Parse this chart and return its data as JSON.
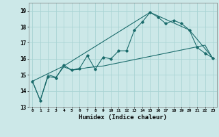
{
  "background_color": "#cce8e8",
  "grid_color": "#aad4d4",
  "line_color": "#1a6b6b",
  "xlabel": "Humidex (Indice chaleur)",
  "xlim": [
    -0.5,
    23.5
  ],
  "ylim": [
    13,
    19.5
  ],
  "yticks": [
    13,
    14,
    15,
    16,
    17,
    18,
    19
  ],
  "xticks": [
    0,
    1,
    2,
    3,
    4,
    5,
    6,
    7,
    8,
    9,
    10,
    11,
    12,
    13,
    14,
    15,
    16,
    17,
    18,
    19,
    20,
    21,
    22,
    23
  ],
  "line1_x": [
    0,
    1,
    2,
    3,
    4,
    5,
    6,
    7,
    8,
    9,
    10,
    11,
    12,
    13,
    14,
    15,
    16,
    17,
    18,
    19,
    20,
    21,
    22,
    23
  ],
  "line1_y": [
    14.6,
    13.4,
    14.9,
    14.8,
    15.6,
    15.3,
    15.4,
    16.2,
    15.35,
    16.1,
    16.0,
    16.5,
    16.5,
    17.8,
    18.3,
    18.9,
    18.6,
    18.2,
    18.4,
    18.2,
    17.8,
    16.7,
    16.35,
    16.05
  ],
  "line2_x": [
    0,
    1,
    2,
    3,
    4,
    5,
    6,
    7,
    8,
    9,
    10,
    11,
    12,
    13,
    14,
    15,
    16,
    17,
    18,
    19,
    20,
    21,
    22,
    23
  ],
  "line2_y": [
    14.6,
    13.4,
    15.0,
    14.85,
    15.5,
    15.3,
    15.35,
    15.45,
    15.5,
    15.55,
    15.65,
    15.75,
    15.85,
    15.95,
    16.05,
    16.15,
    16.25,
    16.35,
    16.45,
    16.55,
    16.65,
    16.75,
    16.85,
    16.0
  ],
  "line3_x": [
    0,
    4,
    15,
    20,
    23
  ],
  "line3_y": [
    14.6,
    15.55,
    18.9,
    17.8,
    16.05
  ]
}
